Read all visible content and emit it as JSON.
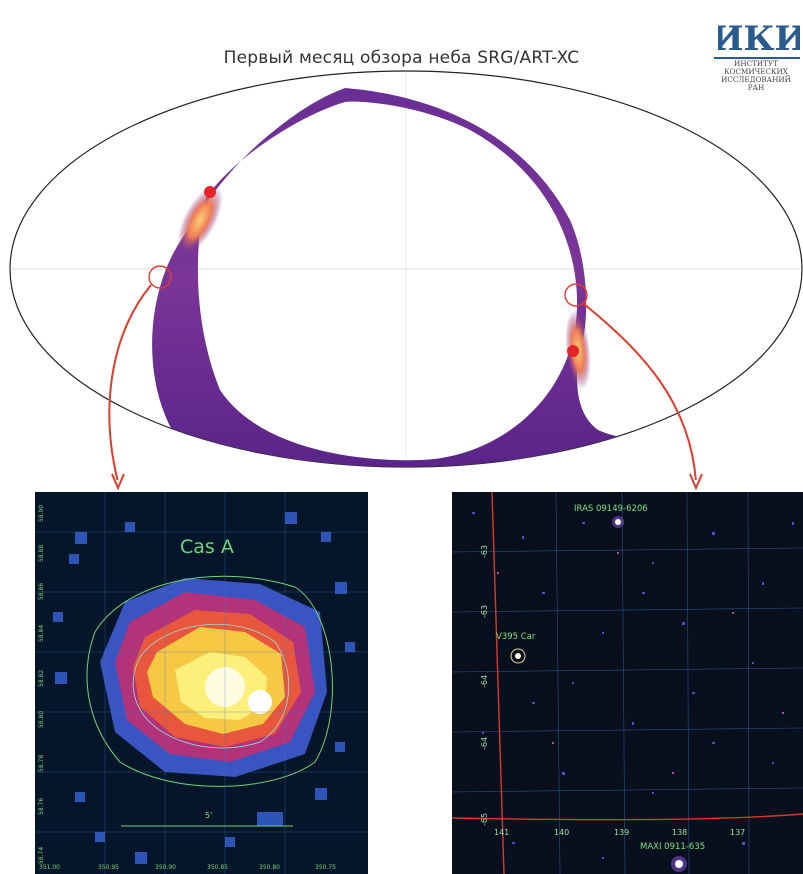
{
  "title": "Первый месяц обзора неба SRG/ART-XC",
  "logo": {
    "mark": "ИКИ",
    "text": "ИНСТИТУТ\nКОСМИЧЕСКИХ\nИССЛЕДОВАНИЙ\nРАН"
  },
  "casa_panel": {
    "title": "Cas A",
    "scale_label": "5'",
    "y_ticks": [
      "58.90",
      "58.88",
      "58.86",
      "58.84",
      "58.82",
      "58.80",
      "58.78",
      "58.76",
      "58.74"
    ],
    "x_ticks": [
      "351.00",
      "350.95",
      "350.90",
      "350.85",
      "350.80",
      "350.75"
    ]
  },
  "carina_panel": {
    "sources": [
      "IRAS 09149-6206",
      "V395 Car",
      "MAXI 0911-635"
    ],
    "ra_ticks": [
      "141",
      "140",
      "139",
      "138",
      "137"
    ],
    "dec_ticks": [
      "-63",
      "-63",
      "-64",
      "-64",
      "-65"
    ]
  },
  "colors": {
    "scan_band_dark": "#5a2a8a",
    "scan_band_bright": "#f5a36b",
    "marker": "#e8242a",
    "arrow": "#e23b2a",
    "label_green": "#6ed37a"
  }
}
